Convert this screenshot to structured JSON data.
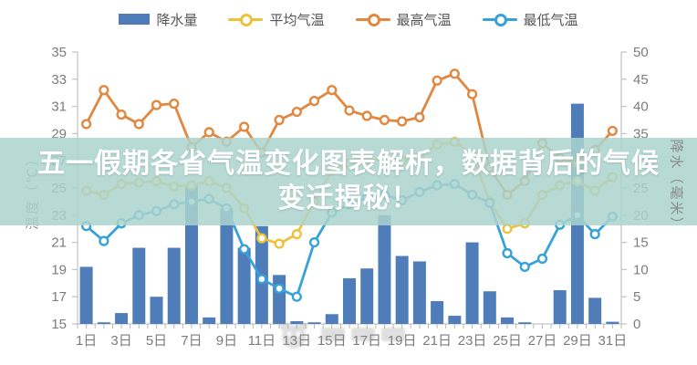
{
  "legend": {
    "items": [
      {
        "label": "降水量",
        "color": "#4e7dba",
        "type": "bar"
      },
      {
        "label": "平均气温",
        "color": "#eec13d",
        "type": "line"
      },
      {
        "label": "最高气温",
        "color": "#e0883f",
        "type": "line"
      },
      {
        "label": "最低气温",
        "color": "#36a2d9",
        "type": "line"
      }
    ]
  },
  "banner": {
    "line1": "五一假期各省气温变化图表解析，数据背后的气候",
    "line2": "变迁揭秘！"
  },
  "chart_data": {
    "type": "combo",
    "title": "",
    "categories": [
      "1日",
      "2日",
      "3日",
      "4日",
      "5日",
      "6日",
      "7日",
      "8日",
      "9日",
      "10日",
      "11日",
      "12日",
      "13日",
      "14日",
      "15日",
      "16日",
      "17日",
      "18日",
      "19日",
      "20日",
      "21日",
      "22日",
      "23日",
      "24日",
      "25日",
      "26日",
      "27日",
      "28日",
      "29日",
      "30日",
      "31日"
    ],
    "x_tick_labels_shown": [
      "1日",
      "3日",
      "5日",
      "7日",
      "9日",
      "11日",
      "13日",
      "15日",
      "17日",
      "19日",
      "21日",
      "23日",
      "25日",
      "27日",
      "29日",
      "31日"
    ],
    "series": [
      {
        "name": "降水量",
        "type": "bar",
        "axis": "right",
        "color": "#4e7dba",
        "values": [
          10.5,
          0.3,
          2,
          14,
          5,
          14,
          25.5,
          1.2,
          21.3,
          14,
          18,
          9,
          0.5,
          0.3,
          1.8,
          8.4,
          10.2,
          20,
          12.5,
          11.5,
          4.2,
          1.5,
          15,
          6,
          1.2,
          0.3,
          0,
          6.2,
          40.5,
          4.8,
          0.4
        ]
      },
      {
        "name": "平均气温",
        "type": "line",
        "axis": "left",
        "color": "#eec13d",
        "values": [
          24.8,
          24.5,
          25.3,
          25.4,
          25.5,
          25.1,
          25.2,
          25.5,
          25.0,
          23.5,
          21.3,
          20.9,
          21.6,
          24.0,
          26.3,
          26.8,
          27.0,
          27.2,
          27.0,
          27.3,
          28.2,
          28.4,
          27.5,
          24.0,
          22.0,
          22.4,
          24.5,
          25.2,
          25.5,
          24.8,
          25.8
        ]
      },
      {
        "name": "最高气温",
        "type": "line",
        "axis": "left",
        "color": "#e0883f",
        "values": [
          29.7,
          32.2,
          30.4,
          29.7,
          31.1,
          31.2,
          28.0,
          29.1,
          28.4,
          29.5,
          27.6,
          30.0,
          30.6,
          31.4,
          32.2,
          30.7,
          30.3,
          30.0,
          29.9,
          30.2,
          32.9,
          33.4,
          31.9,
          26.5,
          24.5,
          25.5,
          28.3,
          27.2,
          26.8,
          27.8,
          29.2
        ]
      },
      {
        "name": "最低气温",
        "type": "line",
        "axis": "left",
        "color": "#36a2d9",
        "values": [
          22.2,
          21.1,
          22.4,
          23.0,
          23.3,
          23.8,
          24.0,
          24.2,
          23.5,
          20.5,
          18.3,
          17.6,
          17.0,
          21.0,
          23.2,
          23.8,
          24.3,
          24.5,
          24.1,
          24.7,
          25.2,
          25.3,
          24.5,
          23.9,
          20.2,
          19.2,
          19.8,
          22.3,
          23.0,
          21.6,
          22.9
        ]
      }
    ],
    "left_axis": {
      "title": "温度（℃）",
      "min": 15,
      "max": 35,
      "ticks": [
        35,
        33,
        31,
        29,
        27,
        25,
        23,
        21,
        19,
        17,
        15
      ]
    },
    "right_axis": {
      "title": "降水（毫米）",
      "min": 0,
      "max": 50,
      "ticks": [
        50,
        45,
        40,
        35,
        30,
        25,
        20,
        15,
        10,
        5,
        0
      ]
    },
    "grid": false,
    "legend_position": "top"
  }
}
